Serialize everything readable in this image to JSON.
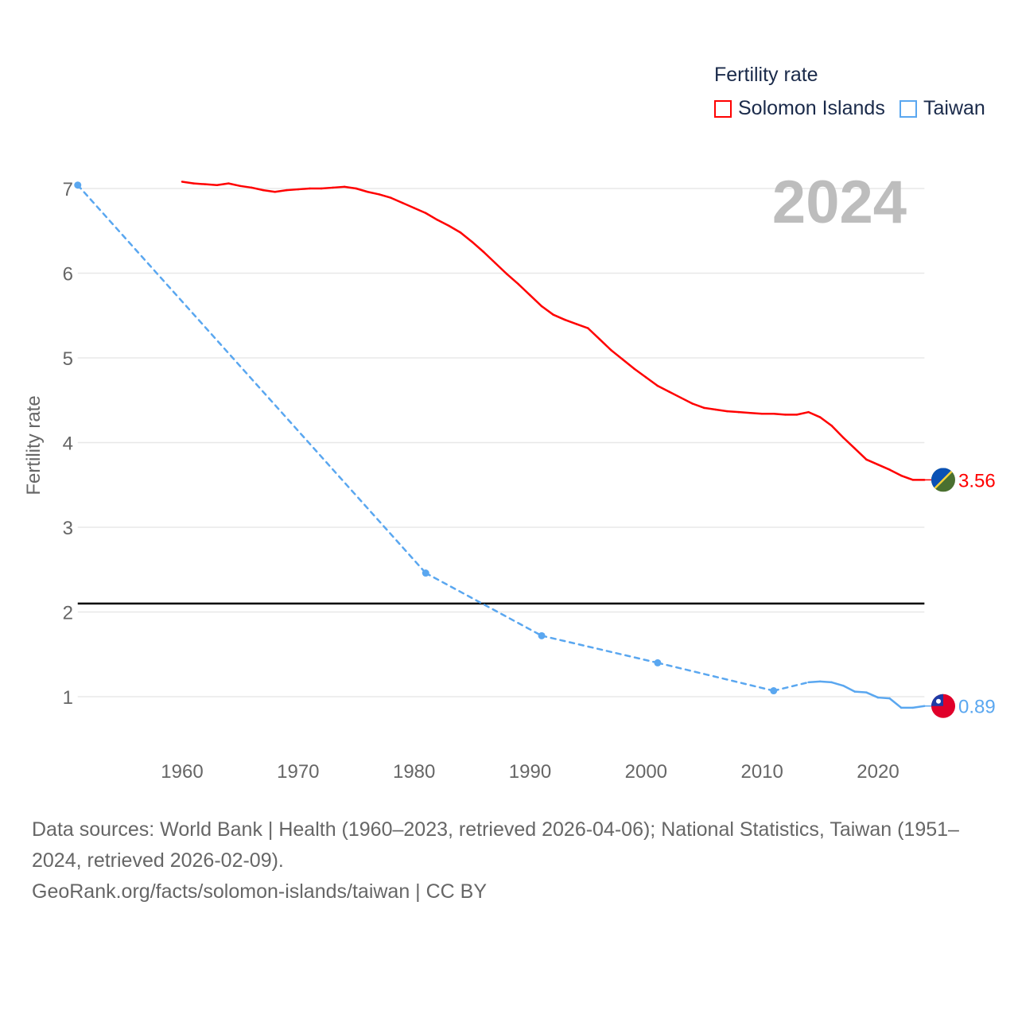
{
  "legend": {
    "title": "Fertility rate",
    "items": [
      {
        "label": "Solomon Islands",
        "color": "#ff0000"
      },
      {
        "label": "Taiwan",
        "color": "#5aa7f0"
      }
    ]
  },
  "footer": {
    "sources": "Data sources: World Bank | Health (1960–2023, retrieved 2026-04-06); National Statistics, Taiwan (1951–2024, retrieved 2026-02-09).",
    "credit": "GeoRank.org/facts/solomon-islands/taiwan | CC BY"
  },
  "chart_data": {
    "type": "line",
    "title": "2024",
    "xlabel": "",
    "ylabel": "Fertility rate",
    "xlim": [
      1951,
      2024
    ],
    "ylim": [
      0.5,
      7.2
    ],
    "xticks": [
      1960,
      1970,
      1980,
      1990,
      2000,
      2010,
      2020
    ],
    "yticks": [
      1,
      2,
      3,
      4,
      5,
      6,
      7
    ],
    "grid": true,
    "legend_position": "top-right",
    "reference_line": {
      "y": 2.1,
      "color": "#000000"
    },
    "series": [
      {
        "name": "Solomon Islands",
        "color": "#ff0000",
        "end_label": "3.56",
        "flag": "solomon-islands-flag",
        "x": [
          1960,
          1961,
          1962,
          1963,
          1964,
          1965,
          1966,
          1967,
          1968,
          1969,
          1970,
          1971,
          1972,
          1973,
          1974,
          1975,
          1976,
          1977,
          1978,
          1979,
          1980,
          1981,
          1982,
          1983,
          1984,
          1985,
          1986,
          1987,
          1988,
          1989,
          1990,
          1991,
          1992,
          1993,
          1994,
          1995,
          1996,
          1997,
          1998,
          1999,
          2000,
          2001,
          2002,
          2003,
          2004,
          2005,
          2006,
          2007,
          2008,
          2009,
          2010,
          2011,
          2012,
          2013,
          2014,
          2015,
          2016,
          2017,
          2018,
          2019,
          2020,
          2021,
          2022,
          2023,
          2024
        ],
        "y": [
          7.08,
          7.06,
          7.05,
          7.04,
          7.06,
          7.03,
          7.01,
          6.98,
          6.96,
          6.98,
          6.99,
          7.0,
          7.0,
          7.01,
          7.02,
          7.0,
          6.96,
          6.93,
          6.89,
          6.83,
          6.77,
          6.71,
          6.63,
          6.56,
          6.48,
          6.37,
          6.25,
          6.12,
          5.99,
          5.87,
          5.74,
          5.61,
          5.51,
          5.45,
          5.4,
          5.35,
          5.22,
          5.09,
          4.98,
          4.87,
          4.77,
          4.67,
          4.6,
          4.53,
          4.46,
          4.41,
          4.39,
          4.37,
          4.36,
          4.35,
          4.34,
          4.34,
          4.33,
          4.33,
          4.36,
          4.3,
          4.2,
          4.06,
          3.93,
          3.8,
          3.74,
          3.68,
          3.61,
          3.56,
          3.56
        ]
      },
      {
        "name": "Taiwan",
        "color": "#5aa7f0",
        "end_label": "0.89",
        "flag": "taiwan-flag",
        "x": [
          1951,
          1981,
          1991,
          2001,
          2011,
          2014,
          2015,
          2016,
          2017,
          2018,
          2019,
          2020,
          2021,
          2022,
          2023,
          2024
        ],
        "y": [
          7.04,
          2.46,
          1.72,
          1.4,
          1.07,
          1.17,
          1.18,
          1.17,
          1.13,
          1.06,
          1.05,
          0.99,
          0.98,
          0.87,
          0.87,
          0.89
        ]
      }
    ]
  }
}
